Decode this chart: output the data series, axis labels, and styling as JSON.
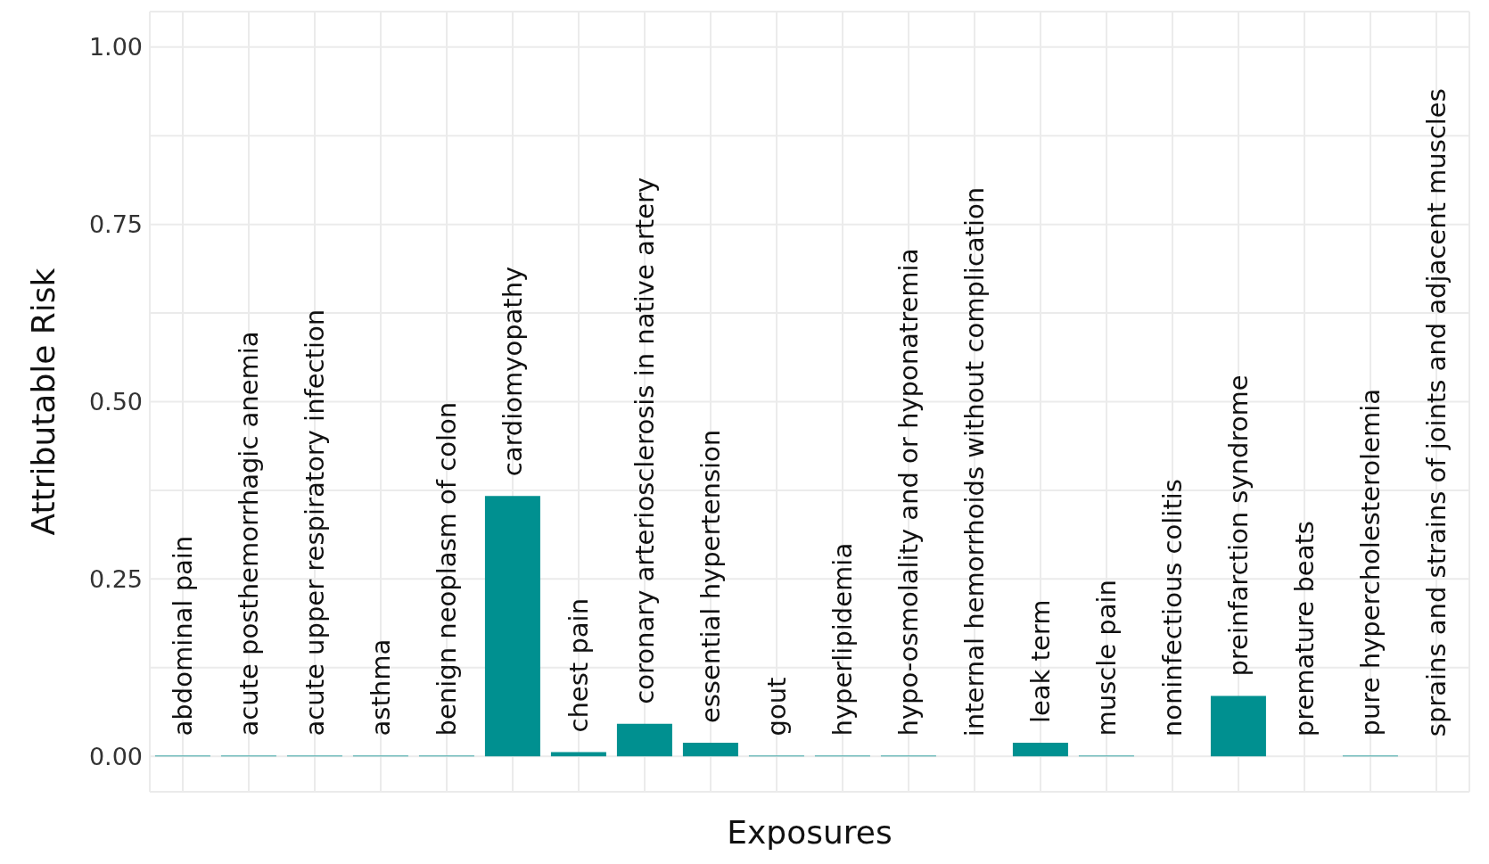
{
  "chart_data": {
    "type": "bar",
    "xlabel": "Exposures",
    "ylabel": "Attributable Risk",
    "categories": [
      "abdominal pain",
      "acute posthemorrhagic anemia",
      "acute upper respiratory infection",
      "asthma",
      "benign neoplasm of colon",
      "cardiomyopathy",
      "chest pain",
      "coronary arteriosclerosis in native artery",
      "essential hypertension",
      "gout",
      "hyperlipidemia",
      "hypo-osmolality and or hyponatremia",
      "internal hemorrhoids without complication",
      "leak term",
      "muscle pain",
      "noninfectious colitis",
      "preinfarction syndrome",
      "premature beats",
      "pure hypercholesterolemia",
      "sprains and strains of joints and adjacent muscles"
    ],
    "values": [
      0.001,
      0.001,
      0.001,
      0.001,
      0.001,
      0.367,
      0.006,
      0.046,
      0.019,
      0.001,
      0.001,
      0.001,
      0,
      0.019,
      0.001,
      0,
      0.085,
      0,
      0.001,
      0
    ],
    "color": "#009090",
    "ylim": [
      -0.05,
      1.05
    ],
    "yticks": [
      {
        "value": 0,
        "label": "0.00"
      },
      {
        "value": 0.125,
        "label": null
      },
      {
        "value": 0.25,
        "label": "0.25"
      },
      {
        "value": 0.375,
        "label": null
      },
      {
        "value": 0.5,
        "label": "0.50"
      },
      {
        "value": 0.625,
        "label": null
      },
      {
        "value": 0.75,
        "label": "0.75"
      },
      {
        "value": 0.875,
        "label": null
      },
      {
        "value": 1,
        "label": "1.00"
      }
    ],
    "grid": true
  }
}
